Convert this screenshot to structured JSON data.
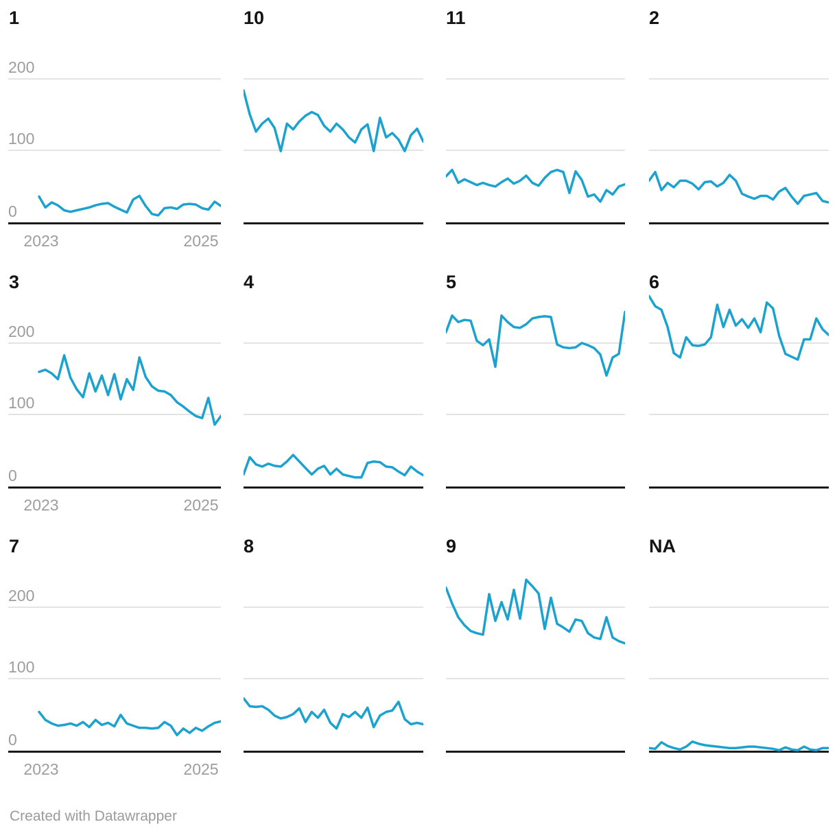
{
  "footer": {
    "credit": "Created with Datawrapper"
  },
  "colors": {
    "line": "#1ca2ce",
    "grid": "#e4e4e4",
    "axis": "#1a1a1a",
    "tick_label": "#9d9d9d",
    "title": "#141414",
    "background": "#ffffff"
  },
  "chart_data": {
    "type": "line",
    "layout": "small-multiples 3 rows x 4 columns",
    "x_tick_labels": [
      "2023",
      "2025"
    ],
    "x_points": 30,
    "ylim": [
      0,
      270
    ],
    "y_gridlines": [
      0,
      100,
      200
    ],
    "y_tick_labels": [
      "200",
      "100",
      "0"
    ],
    "legend": "none",
    "panels": [
      {
        "title": "1",
        "values": [
          37,
          22,
          29,
          25,
          18,
          16,
          18,
          20,
          22,
          25,
          27,
          28,
          23,
          19,
          15,
          33,
          38,
          24,
          13,
          11,
          21,
          22,
          20,
          26,
          27,
          26,
          21,
          19,
          30,
          24
        ]
      },
      {
        "title": "10",
        "values": [
          184,
          151,
          127,
          138,
          145,
          132,
          100,
          138,
          130,
          141,
          149,
          154,
          150,
          135,
          127,
          138,
          130,
          119,
          112,
          130,
          137,
          100,
          146,
          119,
          125,
          116,
          100,
          122,
          131,
          113
        ]
      },
      {
        "title": "11",
        "values": [
          65,
          74,
          56,
          61,
          57,
          53,
          56,
          53,
          51,
          57,
          62,
          55,
          59,
          66,
          56,
          52,
          63,
          71,
          74,
          71,
          42,
          72,
          60,
          37,
          40,
          30,
          46,
          40,
          51,
          54
        ]
      },
      {
        "title": "2",
        "values": [
          59,
          71,
          46,
          56,
          50,
          59,
          59,
          55,
          47,
          57,
          58,
          51,
          56,
          67,
          59,
          41,
          37,
          34,
          38,
          38,
          33,
          44,
          49,
          37,
          27,
          38,
          40,
          42,
          31,
          29
        ]
      },
      {
        "title": "3",
        "values": [
          160,
          163,
          158,
          150,
          183,
          152,
          136,
          125,
          158,
          133,
          155,
          128,
          157,
          122,
          150,
          135,
          180,
          153,
          140,
          134,
          133,
          128,
          118,
          112,
          105,
          99,
          96,
          124,
          87,
          99
        ]
      },
      {
        "title": "4",
        "values": [
          18,
          42,
          32,
          29,
          33,
          30,
          29,
          36,
          45,
          36,
          27,
          18,
          26,
          30,
          18,
          26,
          18,
          16,
          14,
          14,
          34,
          36,
          35,
          29,
          28,
          22,
          17,
          29,
          22,
          17
        ]
      },
      {
        "title": "5",
        "values": [
          215,
          238,
          229,
          232,
          231,
          203,
          197,
          205,
          167,
          238,
          229,
          222,
          221,
          226,
          234,
          236,
          237,
          236,
          198,
          194,
          193,
          194,
          200,
          197,
          193,
          184,
          155,
          180,
          185,
          243
        ]
      },
      {
        "title": "6",
        "values": [
          265,
          251,
          246,
          222,
          186,
          180,
          208,
          197,
          196,
          198,
          208,
          253,
          222,
          246,
          224,
          233,
          221,
          234,
          215,
          256,
          248,
          210,
          185,
          181,
          177,
          205,
          205,
          234,
          219,
          211
        ]
      },
      {
        "title": "7",
        "values": [
          55,
          44,
          39,
          36,
          37,
          39,
          36,
          41,
          34,
          44,
          37,
          40,
          35,
          51,
          39,
          36,
          33,
          33,
          32,
          33,
          41,
          36,
          23,
          32,
          26,
          33,
          29,
          35,
          40,
          42
        ]
      },
      {
        "title": "8",
        "values": [
          74,
          63,
          62,
          63,
          58,
          50,
          46,
          48,
          52,
          60,
          41,
          55,
          47,
          58,
          40,
          32,
          52,
          48,
          55,
          47,
          61,
          34,
          50,
          55,
          57,
          69,
          45,
          38,
          40,
          38
        ]
      },
      {
        "title": "9",
        "values": [
          227,
          205,
          186,
          175,
          167,
          164,
          162,
          218,
          181,
          207,
          183,
          224,
          184,
          238,
          229,
          219,
          170,
          213,
          177,
          172,
          166,
          183,
          181,
          164,
          158,
          156,
          186,
          158,
          153,
          150
        ]
      },
      {
        "title": "NA",
        "values": [
          5,
          4,
          13,
          8,
          5,
          3,
          7,
          14,
          11,
          9,
          8,
          7,
          6,
          5,
          5,
          6,
          7,
          7,
          6,
          5,
          4,
          2,
          6,
          3,
          2,
          7,
          3,
          2,
          5,
          5
        ]
      }
    ]
  }
}
